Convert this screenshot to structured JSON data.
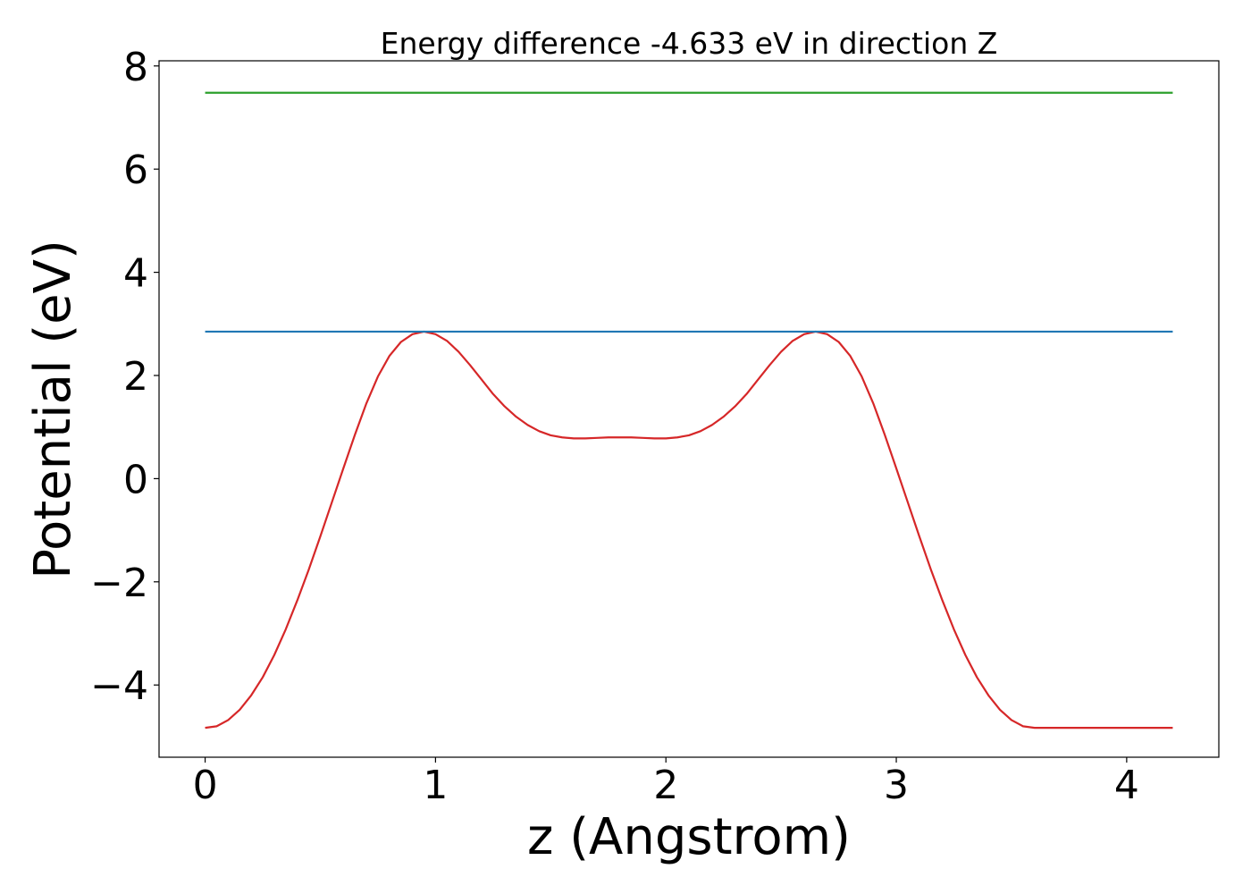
{
  "chart_data": {
    "type": "line",
    "title": "Energy difference -4.633 eV in direction Z",
    "xlabel": "z (Angstrom)",
    "ylabel": "Potential (eV)",
    "xlim": [
      -0.2,
      4.4
    ],
    "ylim": [
      -5.4,
      8.1
    ],
    "xticks": [
      0,
      1,
      2,
      3,
      4
    ],
    "xtick_labels": [
      "0",
      "1",
      "2",
      "3",
      "4"
    ],
    "yticks": [
      -4,
      -2,
      0,
      2,
      4,
      6,
      8
    ],
    "ytick_labels": [
      "−4",
      "−2",
      "0",
      "2",
      "4",
      "6",
      "8"
    ],
    "grid": false,
    "series": [
      {
        "color": "#d62728",
        "x": [
          0,
          0.05,
          0.1,
          0.15,
          0.2,
          0.25,
          0.3,
          0.35,
          0.4,
          0.45,
          0.5,
          0.55,
          0.6,
          0.65,
          0.7,
          0.75,
          0.8,
          0.85,
          0.9,
          0.95,
          1.0,
          1.05,
          1.1,
          1.15,
          1.2,
          1.25,
          1.3,
          1.35,
          1.4,
          1.45,
          1.5,
          1.55,
          1.6,
          1.65,
          1.7,
          1.75,
          1.8,
          1.85,
          1.9,
          1.95,
          2.0,
          2.05,
          2.1,
          2.15,
          2.2,
          2.25,
          2.3,
          2.35,
          2.4,
          2.45,
          2.5,
          2.55,
          2.6,
          2.65,
          2.7,
          2.75,
          2.8,
          2.85,
          2.9,
          2.95,
          3.0,
          3.05,
          3.1,
          3.15,
          3.2,
          3.25,
          3.3,
          3.35,
          3.4,
          3.45,
          3.5,
          3.55,
          3.6,
          3.65,
          3.7,
          3.75,
          3.8,
          3.85,
          3.9,
          3.95,
          4.0,
          4.05,
          4.1,
          4.15,
          4.2
        ],
        "y": [
          -4.83,
          -4.8,
          -4.68,
          -4.48,
          -4.2,
          -3.85,
          -3.42,
          -2.92,
          -2.36,
          -1.76,
          -1.12,
          -0.46,
          0.2,
          0.85,
          1.46,
          1.98,
          2.38,
          2.65,
          2.8,
          2.85,
          2.8,
          2.67,
          2.46,
          2.2,
          1.92,
          1.64,
          1.4,
          1.2,
          1.04,
          0.92,
          0.84,
          0.8,
          0.78,
          0.78,
          0.79,
          0.8,
          0.8,
          0.8,
          0.79,
          0.78,
          0.78,
          0.8,
          0.84,
          0.92,
          1.04,
          1.2,
          1.4,
          1.64,
          1.92,
          2.2,
          2.46,
          2.67,
          2.8,
          2.85,
          2.8,
          2.65,
          2.38,
          1.98,
          1.46,
          0.85,
          0.2,
          -0.46,
          -1.12,
          -1.76,
          -2.36,
          -2.92,
          -3.42,
          -3.85,
          -4.2,
          -4.48,
          -4.68,
          -4.8,
          -4.83,
          -4.83,
          -4.83,
          -4.83,
          -4.83,
          -4.83,
          -4.83,
          -4.83,
          -4.83,
          -4.83,
          -4.83,
          -4.83,
          -4.83
        ]
      },
      {
        "color": "#1f77b4",
        "x": [
          0,
          4.2
        ],
        "y": [
          2.85,
          2.85
        ]
      },
      {
        "color": "#2ca02c",
        "x": [
          0,
          4.2
        ],
        "y": [
          7.48,
          7.48
        ]
      }
    ]
  }
}
